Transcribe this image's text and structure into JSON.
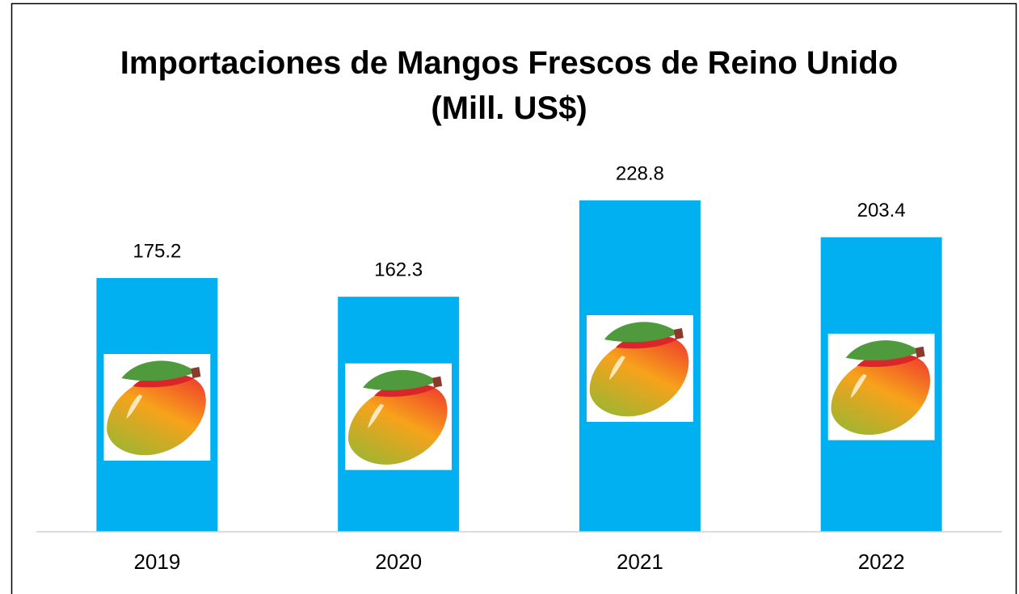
{
  "chart_data": {
    "type": "bar",
    "title": "Importaciones de Mangos Frescos de Reino Unido (Mill. US$)",
    "categories": [
      "2019",
      "2020",
      "2021",
      "2022"
    ],
    "values": [
      175.2,
      162.3,
      228.8,
      203.4
    ],
    "color": "#00b0f0",
    "ylim": [
      0,
      250
    ]
  }
}
